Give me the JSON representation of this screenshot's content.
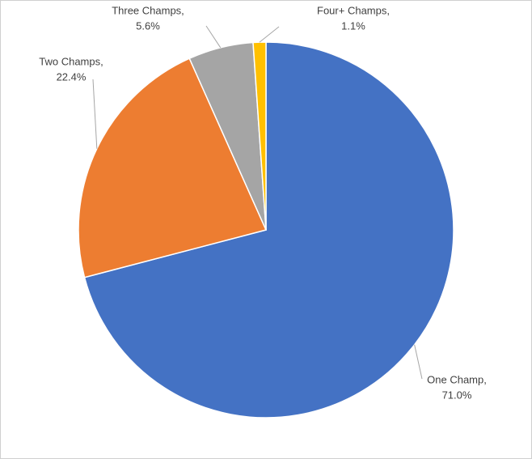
{
  "chart_data": {
    "type": "pie",
    "categories": [
      "One Champ,",
      "Two Champs,",
      "Three Champs,",
      "Four+ Champs,"
    ],
    "values": [
      71.0,
      22.4,
      5.6,
      1.1
    ],
    "value_labels": [
      "71.0%",
      "22.4%",
      "5.6%",
      "1.1%"
    ],
    "colors": [
      "#4472c4",
      "#ed7d31",
      "#a5a5a5",
      "#ffc000"
    ]
  }
}
